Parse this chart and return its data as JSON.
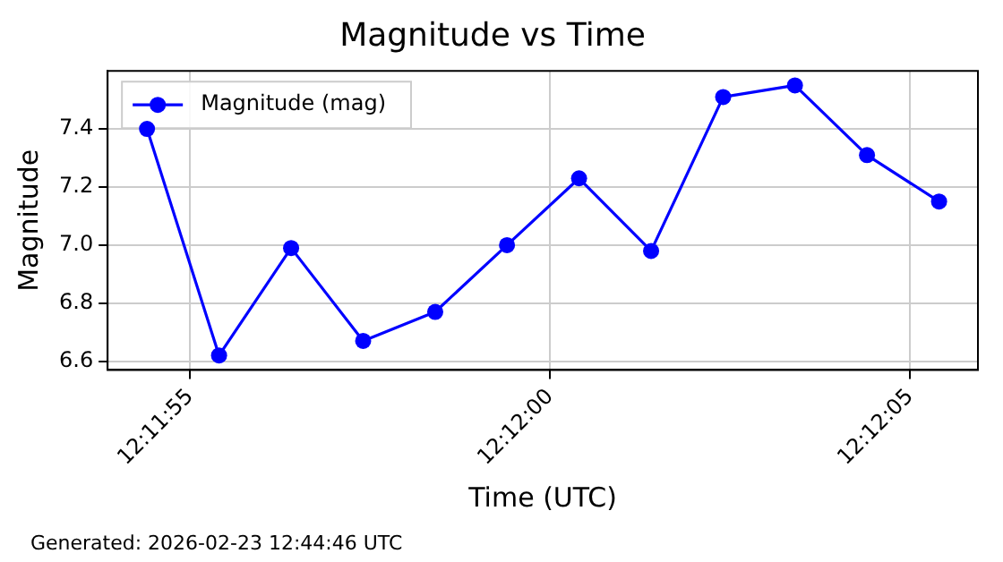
{
  "chart_data": {
    "type": "line",
    "title": "Magnitude vs Time",
    "xlabel": "Time (UTC)",
    "ylabel": "Magnitude",
    "x": [
      12.198444,
      12.198722,
      12.199,
      12.199278,
      12.199556,
      12.199833,
      12.200111,
      12.200389,
      12.200667,
      12.200944,
      12.201222,
      12.2015
    ],
    "series": [
      {
        "name": "Magnitude (mag)",
        "color": "#0000ff",
        "values": [
          7.4,
          6.62,
          6.99,
          6.67,
          6.77,
          7.0,
          7.23,
          6.98,
          7.51,
          7.55,
          7.31,
          7.15
        ]
      }
    ],
    "xlim": [
      12.198292,
      12.20165
    ],
    "xticks": [
      {
        "value": 12.198611,
        "label": "12:11:55"
      },
      {
        "value": 12.2,
        "label": "12:12:00"
      },
      {
        "value": 12.201389,
        "label": "12:12:05"
      }
    ],
    "ylim": [
      6.57,
      7.6
    ],
    "yticks": [
      6.6,
      6.8,
      {
        "value": 7.0,
        "label": "7.0"
      },
      7.2,
      7.4
    ],
    "grid": true,
    "legend": "top left",
    "marker": "circle",
    "line_style": "solid",
    "annotations": [
      "Generated: 2026-02-23 12:44:46 UTC"
    ]
  }
}
